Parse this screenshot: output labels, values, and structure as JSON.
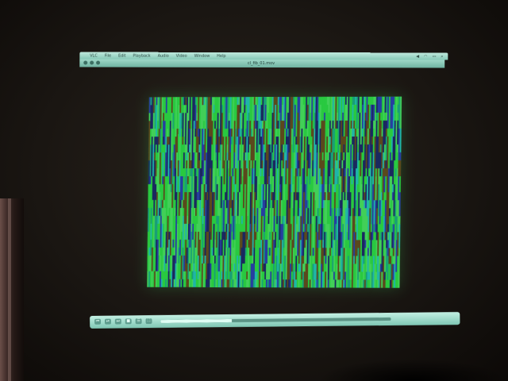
{
  "window": {
    "title": "cl_fib_01.mov"
  },
  "menubar": {
    "apple": "",
    "items": [
      "VLC",
      "File",
      "Edit",
      "Playback",
      "Audio",
      "Video",
      "Window",
      "Help"
    ]
  },
  "controller": {
    "progress": 0.31,
    "buttons": [
      "⏮",
      "⏯",
      "⏭",
      "■",
      "☰",
      "⛶"
    ]
  },
  "visualization": {
    "colors": {
      "green": "#2ee84a",
      "lime": "#4cf067",
      "teal": "#19b58c",
      "blue": "#2a3fbf",
      "navy": "#1b2470",
      "brown": "#6b4b1e",
      "cyan": "#22d0c8"
    },
    "columns": 180,
    "rows": 24
  }
}
